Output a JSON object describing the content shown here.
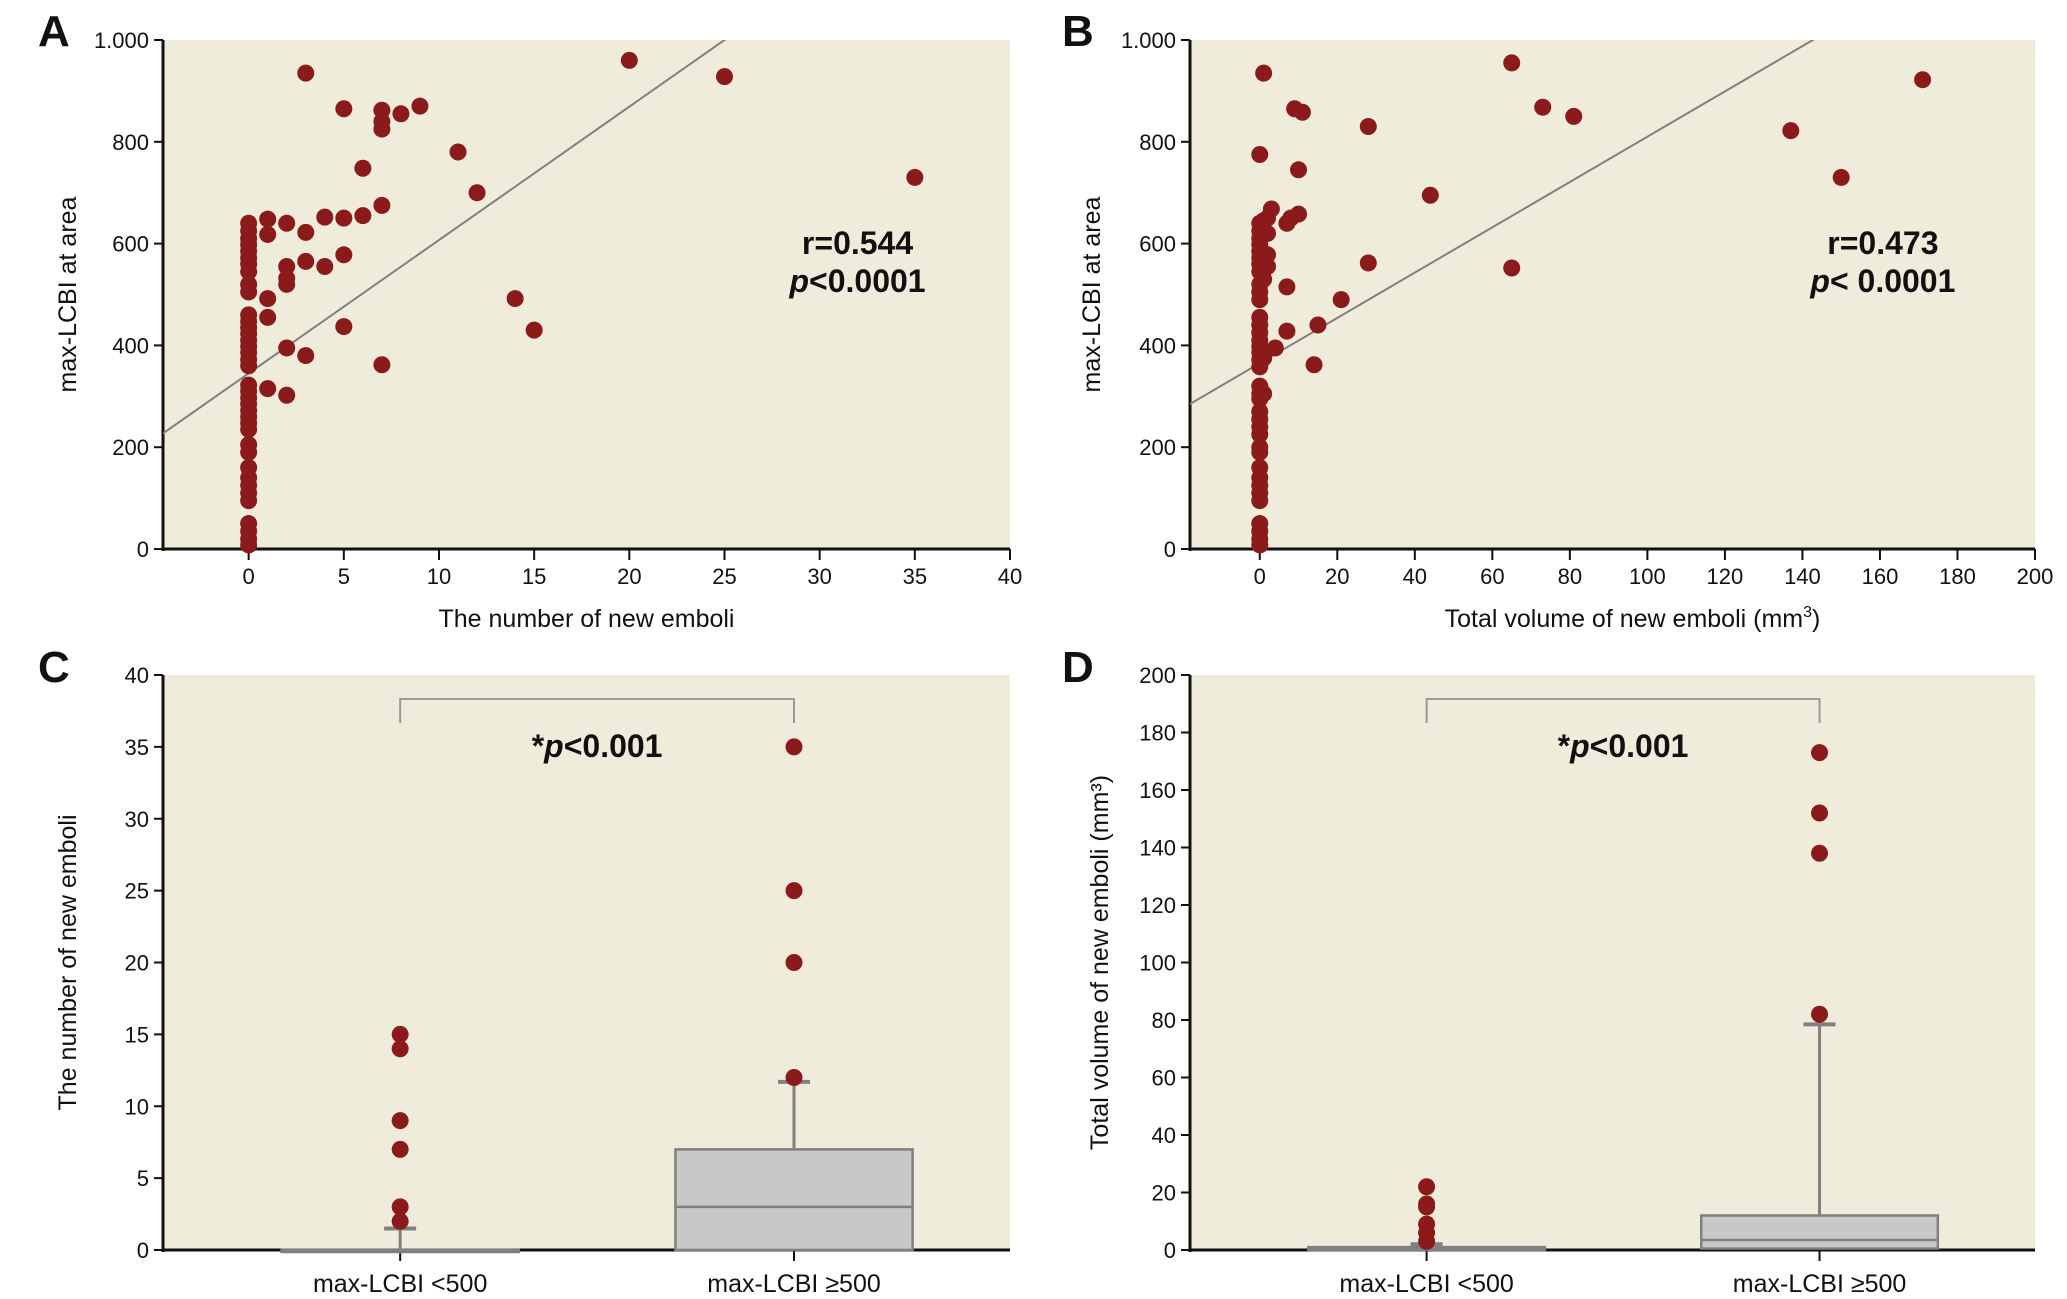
{
  "colors": {
    "plot_bg": "#f0ecdb",
    "point": "#8b1a1a",
    "fit_line": "#808080",
    "box_fill": "#c8c8c8",
    "box_stroke": "#808080",
    "axis": "#111111",
    "bracket": "#9a9a9a"
  },
  "chart_data": [
    {
      "panel": "A",
      "type": "scatter",
      "xlabel": "The number of new emboli",
      "ylabel": "max-LCBI at area",
      "xlim": [
        -4.5,
        40
      ],
      "ylim": [
        0,
        1000
      ],
      "xticks": [
        0,
        5,
        10,
        15,
        20,
        25,
        30,
        35,
        40
      ],
      "yticks": [
        0,
        200,
        400,
        600,
        800,
        1000
      ],
      "ytick_labels": [
        "0",
        "200",
        "400",
        "600",
        "800",
        "1.000"
      ],
      "annotation": {
        "r": "r=0.544",
        "p": "<0.0001"
      },
      "fit_line": {
        "intercept": 345,
        "slope": 26.2
      },
      "points": [
        [
          0,
          640
        ],
        [
          0,
          625
        ],
        [
          0,
          610
        ],
        [
          0,
          598
        ],
        [
          0,
          585
        ],
        [
          0,
          572
        ],
        [
          0,
          560
        ],
        [
          0,
          545
        ],
        [
          0,
          520
        ],
        [
          0,
          505
        ],
        [
          0,
          460
        ],
        [
          0,
          447
        ],
        [
          0,
          435
        ],
        [
          0,
          423
        ],
        [
          0,
          410
        ],
        [
          0,
          398
        ],
        [
          0,
          386
        ],
        [
          0,
          372
        ],
        [
          0,
          360
        ],
        [
          0,
          322
        ],
        [
          0,
          310
        ],
        [
          0,
          297
        ],
        [
          0,
          285
        ],
        [
          0,
          272
        ],
        [
          0,
          260
        ],
        [
          0,
          248
        ],
        [
          0,
          235
        ],
        [
          0,
          205
        ],
        [
          0,
          190
        ],
        [
          0,
          160
        ],
        [
          0,
          140
        ],
        [
          0,
          125
        ],
        [
          0,
          110
        ],
        [
          0,
          95
        ],
        [
          0,
          50
        ],
        [
          0,
          35
        ],
        [
          0,
          20
        ],
        [
          0,
          8
        ],
        [
          1,
          648
        ],
        [
          1,
          618
        ],
        [
          1,
          492
        ],
        [
          1,
          455
        ],
        [
          1,
          315
        ],
        [
          2,
          640
        ],
        [
          2,
          555
        ],
        [
          2,
          532
        ],
        [
          2,
          520
        ],
        [
          2,
          395
        ],
        [
          2,
          302
        ],
        [
          3,
          935
        ],
        [
          3,
          622
        ],
        [
          3,
          565
        ],
        [
          3,
          380
        ],
        [
          4,
          652
        ],
        [
          4,
          555
        ],
        [
          5,
          865
        ],
        [
          5,
          650
        ],
        [
          5,
          578
        ],
        [
          5,
          437
        ],
        [
          6,
          748
        ],
        [
          6,
          655
        ],
        [
          7,
          862
        ],
        [
          7,
          840
        ],
        [
          7,
          825
        ],
        [
          7,
          675
        ],
        [
          7,
          362
        ],
        [
          8,
          855
        ],
        [
          9,
          870
        ],
        [
          11,
          780
        ],
        [
          12,
          700
        ],
        [
          14,
          492
        ],
        [
          15,
          430
        ],
        [
          20,
          960
        ],
        [
          25,
          928
        ],
        [
          35,
          730
        ]
      ]
    },
    {
      "panel": "B",
      "type": "scatter",
      "xlabel": "Total volume of new emboli (mm",
      "xlabel_sup": "3",
      "xlabel_end": ")",
      "ylabel": "max-LCBI at area",
      "xlim": [
        -18,
        200
      ],
      "ylim": [
        0,
        1000
      ],
      "xticks": [
        0,
        20,
        40,
        60,
        80,
        100,
        120,
        140,
        160,
        180,
        200
      ],
      "yticks": [
        0,
        200,
        400,
        600,
        800,
        1000
      ],
      "ytick_labels": [
        "0",
        "200",
        "400",
        "600",
        "800",
        "1.000"
      ],
      "annotation": {
        "r": "r=0.473",
        "p": "< 0.0001"
      },
      "fit_line": {
        "intercept": 365,
        "slope": 4.45
      },
      "points": [
        [
          0,
          775
        ],
        [
          0,
          640
        ],
        [
          0,
          625
        ],
        [
          0,
          610
        ],
        [
          0,
          598
        ],
        [
          0,
          585
        ],
        [
          0,
          572
        ],
        [
          0,
          560
        ],
        [
          0,
          545
        ],
        [
          0,
          520
        ],
        [
          0,
          505
        ],
        [
          0,
          490
        ],
        [
          0,
          455
        ],
        [
          0,
          440
        ],
        [
          0,
          425
        ],
        [
          0,
          410
        ],
        [
          0,
          398
        ],
        [
          0,
          386
        ],
        [
          0,
          372
        ],
        [
          0,
          358
        ],
        [
          0,
          320
        ],
        [
          0,
          305
        ],
        [
          0,
          295
        ],
        [
          0,
          270
        ],
        [
          0,
          255
        ],
        [
          0,
          240
        ],
        [
          0,
          225
        ],
        [
          0,
          200
        ],
        [
          0,
          190
        ],
        [
          0,
          160
        ],
        [
          0,
          140
        ],
        [
          0,
          125
        ],
        [
          0,
          110
        ],
        [
          0,
          95
        ],
        [
          0,
          50
        ],
        [
          0,
          35
        ],
        [
          0,
          20
        ],
        [
          0,
          8
        ],
        [
          1,
          935
        ],
        [
          1,
          645
        ],
        [
          1,
          625
        ],
        [
          1,
          548
        ],
        [
          1,
          530
        ],
        [
          1,
          375
        ],
        [
          1,
          305
        ],
        [
          2,
          650
        ],
        [
          2,
          620
        ],
        [
          2,
          578
        ],
        [
          2,
          555
        ],
        [
          3,
          668
        ],
        [
          4,
          395
        ],
        [
          7,
          640
        ],
        [
          7,
          515
        ],
        [
          7,
          428
        ],
        [
          8,
          650
        ],
        [
          9,
          865
        ],
        [
          10,
          745
        ],
        [
          10,
          658
        ],
        [
          11,
          858
        ],
        [
          14,
          362
        ],
        [
          15,
          440
        ],
        [
          21,
          490
        ],
        [
          28,
          830
        ],
        [
          28,
          562
        ],
        [
          44,
          695
        ],
        [
          65,
          955
        ],
        [
          65,
          552
        ],
        [
          73,
          868
        ],
        [
          81,
          850
        ],
        [
          137,
          822
        ],
        [
          150,
          730
        ],
        [
          171,
          922
        ]
      ]
    },
    {
      "panel": "C",
      "type": "box",
      "ylabel": "The number of new emboli",
      "ylim": [
        0,
        40
      ],
      "yticks": [
        0,
        5,
        10,
        15,
        20,
        25,
        30,
        35,
        40
      ],
      "categories": [
        "max-LCBI <500",
        "max-LCBI ≥500"
      ],
      "annotation": "*p<0.001",
      "boxes": [
        {
          "q1": 0,
          "median": 0,
          "q3": 0,
          "whisker_low": 0,
          "whisker_high": 1.5,
          "outliers": [
            2,
            3,
            7,
            9,
            14,
            15
          ]
        },
        {
          "q1": 0,
          "median": 3,
          "q3": 7,
          "whisker_low": 0,
          "whisker_high": 11.7,
          "outliers": [
            12,
            20,
            25,
            35
          ]
        }
      ]
    },
    {
      "panel": "D",
      "type": "box",
      "ylabel": "Total volume of new emboli (mm³)",
      "ylim": [
        0,
        200
      ],
      "yticks": [
        0,
        20,
        40,
        60,
        80,
        100,
        120,
        140,
        160,
        180,
        200
      ],
      "categories": [
        "max-LCBI <500",
        "max-LCBI ≥500"
      ],
      "annotation": "*p<0.001",
      "boxes": [
        {
          "q1": 0,
          "median": 0.5,
          "q3": 1,
          "whisker_low": 0,
          "whisker_high": 2,
          "outliers": [
            3,
            6,
            9,
            15,
            16,
            22
          ]
        },
        {
          "q1": 0.5,
          "median": 3.5,
          "q3": 12,
          "whisker_low": 0,
          "whisker_high": 78.5,
          "outliers": [
            82,
            138,
            152,
            173
          ]
        }
      ]
    }
  ]
}
